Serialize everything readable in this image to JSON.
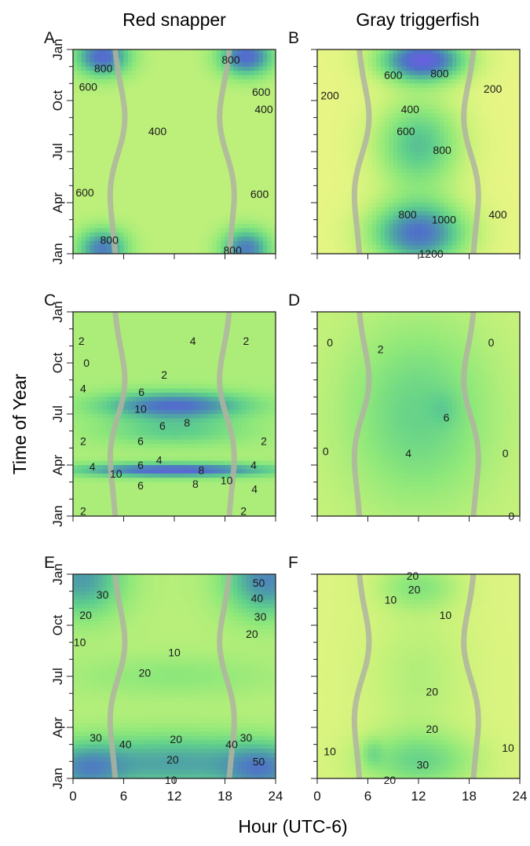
{
  "chart_data": {
    "type": "heatmap",
    "column_titles": [
      "Red snapper",
      "Gray triggerfish"
    ],
    "xlabel": "Hour (UTC-6)",
    "ylabel": "Time of Year",
    "x_ticks": [
      0,
      6,
      12,
      18,
      24
    ],
    "x_tick_labels": [
      "0",
      "6",
      "12",
      "18",
      "24"
    ],
    "xlim": [
      0,
      24
    ],
    "y_tick_labels": [
      "Jan",
      "Apr",
      "Jul",
      "Oct",
      "Jan"
    ],
    "y_tick_positions": [
      0,
      3,
      6,
      9,
      12
    ],
    "ylim": [
      0,
      12
    ],
    "colorscale": [
      "#f6f78a",
      "#c9f27a",
      "#8fe87a",
      "#5fcf8c",
      "#4d9ea8",
      "#4f72c8",
      "#6a5ee0"
    ],
    "panels": [
      {
        "letter": "A",
        "row": 0,
        "col": 0,
        "vmin": 200,
        "vmax": 1300,
        "sun_line": true,
        "blobs": [
          {
            "x": 3.5,
            "y": 11.6,
            "sx": 2.2,
            "sy": 0.8,
            "a": 750
          },
          {
            "x": 20.5,
            "y": 11.6,
            "sx": 2.2,
            "sy": 0.8,
            "a": 750
          },
          {
            "x": 3.5,
            "y": 0.3,
            "sx": 2.0,
            "sy": 0.8,
            "a": 650
          },
          {
            "x": 20.5,
            "y": 0.3,
            "sx": 2.0,
            "sy": 0.8,
            "a": 650
          }
        ],
        "base": 420,
        "labels": [
          {
            "x": 3.6,
            "y": 10.9,
            "t": "800"
          },
          {
            "x": 18.7,
            "y": 11.4,
            "t": "800"
          },
          {
            "x": 1.8,
            "y": 9.8,
            "t": "600"
          },
          {
            "x": 22.3,
            "y": 9.5,
            "t": "600"
          },
          {
            "x": 22.6,
            "y": 8.5,
            "t": "400"
          },
          {
            "x": 10.0,
            "y": 7.2,
            "t": "400"
          },
          {
            "x": 1.4,
            "y": 3.6,
            "t": "600"
          },
          {
            "x": 22.1,
            "y": 3.5,
            "t": "600"
          },
          {
            "x": 4.3,
            "y": 0.8,
            "t": "800"
          },
          {
            "x": 18.9,
            "y": 0.2,
            "t": "800"
          }
        ]
      },
      {
        "letter": "B",
        "row": 0,
        "col": 1,
        "vmin": 200,
        "vmax": 1300,
        "sun_line": true,
        "base": 260,
        "blobs": [
          {
            "x": 12.5,
            "y": 11.4,
            "sx": 3.6,
            "sy": 0.9,
            "a": 1000
          },
          {
            "x": 12.0,
            "y": 6.4,
            "sx": 3.6,
            "sy": 1.9,
            "a": 540
          },
          {
            "x": 12.0,
            "y": 1.2,
            "sx": 4.0,
            "sy": 1.3,
            "a": 850
          }
        ],
        "labels": [
          {
            "x": 9.0,
            "y": 10.5,
            "t": "600"
          },
          {
            "x": 14.5,
            "y": 10.6,
            "t": "800"
          },
          {
            "x": 1.5,
            "y": 9.3,
            "t": "200"
          },
          {
            "x": 20.8,
            "y": 9.7,
            "t": "200"
          },
          {
            "x": 11.0,
            "y": 8.5,
            "t": "400"
          },
          {
            "x": 10.5,
            "y": 7.2,
            "t": "600"
          },
          {
            "x": 14.8,
            "y": 6.1,
            "t": "800"
          },
          {
            "x": 21.4,
            "y": 2.3,
            "t": "400"
          },
          {
            "x": 10.7,
            "y": 2.3,
            "t": "800"
          },
          {
            "x": 15.0,
            "y": 2.0,
            "t": "1000"
          },
          {
            "x": 13.5,
            "y": 0.0,
            "t": "1200"
          }
        ]
      },
      {
        "letter": "C",
        "row": 1,
        "col": 0,
        "vmin": -2,
        "vmax": 12,
        "sun_line": true,
        "base": 1.5,
        "blobs": [
          {
            "x": 12.0,
            "y": 6.5,
            "sx": 6.0,
            "sy": 0.55,
            "a": 8.5
          },
          {
            "x": 12.0,
            "y": 2.7,
            "sx": 8.0,
            "sy": 0.28,
            "a": 9.5
          },
          {
            "x": 12.0,
            "y": 5.0,
            "sx": 6.0,
            "sy": 0.6,
            "a": 3.5
          }
        ],
        "labels": [
          {
            "x": 1.0,
            "y": 10.3,
            "t": "2"
          },
          {
            "x": 14.2,
            "y": 10.3,
            "t": "4"
          },
          {
            "x": 20.5,
            "y": 10.3,
            "t": "2"
          },
          {
            "x": 1.6,
            "y": 9.0,
            "t": "0"
          },
          {
            "x": 10.8,
            "y": 8.3,
            "t": "2"
          },
          {
            "x": 1.2,
            "y": 7.5,
            "t": "4"
          },
          {
            "x": 8.1,
            "y": 7.3,
            "t": "6"
          },
          {
            "x": 8.0,
            "y": 6.3,
            "t": "10"
          },
          {
            "x": 13.5,
            "y": 5.5,
            "t": "8"
          },
          {
            "x": 10.6,
            "y": 5.3,
            "t": "6"
          },
          {
            "x": 8.0,
            "y": 4.4,
            "t": "6"
          },
          {
            "x": 1.2,
            "y": 4.4,
            "t": "2"
          },
          {
            "x": 22.6,
            "y": 4.4,
            "t": "2"
          },
          {
            "x": 2.3,
            "y": 2.9,
            "t": "4"
          },
          {
            "x": 8.0,
            "y": 3.0,
            "t": "6"
          },
          {
            "x": 10.2,
            "y": 3.3,
            "t": "4"
          },
          {
            "x": 21.4,
            "y": 3.0,
            "t": "4"
          },
          {
            "x": 5.1,
            "y": 2.5,
            "t": "10"
          },
          {
            "x": 15.2,
            "y": 2.7,
            "t": "8"
          },
          {
            "x": 18.2,
            "y": 2.1,
            "t": "10"
          },
          {
            "x": 8.0,
            "y": 1.8,
            "t": "6"
          },
          {
            "x": 14.5,
            "y": 1.9,
            "t": "8"
          },
          {
            "x": 21.5,
            "y": 1.6,
            "t": "4"
          },
          {
            "x": 1.2,
            "y": 0.3,
            "t": "2"
          },
          {
            "x": 20.2,
            "y": 0.3,
            "t": "2"
          }
        ]
      },
      {
        "letter": "D",
        "row": 1,
        "col": 1,
        "vmin": -2,
        "vmax": 12,
        "sun_line": true,
        "base": 0.3,
        "blobs": [
          {
            "x": 12.0,
            "y": 6.0,
            "sx": 6.0,
            "sy": 3.8,
            "a": 4.3
          },
          {
            "x": 15.0,
            "y": 6.3,
            "sx": 1.2,
            "sy": 0.7,
            "a": 1.2
          }
        ],
        "labels": [
          {
            "x": 1.5,
            "y": 10.2,
            "t": "0"
          },
          {
            "x": 20.6,
            "y": 10.2,
            "t": "0"
          },
          {
            "x": 7.5,
            "y": 9.8,
            "t": "2"
          },
          {
            "x": 15.3,
            "y": 5.8,
            "t": "6"
          },
          {
            "x": 10.8,
            "y": 3.7,
            "t": "4"
          },
          {
            "x": 1.0,
            "y": 3.8,
            "t": "0"
          },
          {
            "x": 22.3,
            "y": 3.7,
            "t": "0"
          },
          {
            "x": 23.0,
            "y": 0.0,
            "t": "0"
          }
        ]
      },
      {
        "letter": "E",
        "row": 2,
        "col": 0,
        "vmin": 0,
        "vmax": 65,
        "sun_line": true,
        "base": 14,
        "blobs": [
          {
            "x": 1.0,
            "y": 11.8,
            "sx": 3.5,
            "sy": 1.6,
            "a": 30
          },
          {
            "x": 23.0,
            "y": 11.8,
            "sx": 3.5,
            "sy": 1.6,
            "a": 35
          },
          {
            "x": 12.0,
            "y": 0.9,
            "sx": 11.0,
            "sy": 1.2,
            "a": 28
          },
          {
            "x": 1.5,
            "y": 0.5,
            "sx": 3.0,
            "sy": 1.0,
            "a": 20
          },
          {
            "x": 22.5,
            "y": 0.5,
            "sx": 3.0,
            "sy": 1.0,
            "a": 22
          },
          {
            "x": 12.0,
            "y": 6.0,
            "sx": 9.0,
            "sy": 0.9,
            "a": 8
          }
        ],
        "labels": [
          {
            "x": 22.0,
            "y": 11.5,
            "t": "50"
          },
          {
            "x": 3.5,
            "y": 10.8,
            "t": "30"
          },
          {
            "x": 21.8,
            "y": 10.6,
            "t": "40"
          },
          {
            "x": 22.2,
            "y": 9.5,
            "t": "30"
          },
          {
            "x": 1.5,
            "y": 9.6,
            "t": "20"
          },
          {
            "x": 21.2,
            "y": 8.5,
            "t": "20"
          },
          {
            "x": 0.8,
            "y": 8.0,
            "t": "10"
          },
          {
            "x": 12.0,
            "y": 7.4,
            "t": "10"
          },
          {
            "x": 8.5,
            "y": 6.2,
            "t": "20"
          },
          {
            "x": 2.7,
            "y": 2.4,
            "t": "30"
          },
          {
            "x": 20.5,
            "y": 2.4,
            "t": "30"
          },
          {
            "x": 6.2,
            "y": 2.0,
            "t": "40"
          },
          {
            "x": 18.8,
            "y": 2.0,
            "t": "40"
          },
          {
            "x": 12.2,
            "y": 2.3,
            "t": "20"
          },
          {
            "x": 11.8,
            "y": 1.1,
            "t": "20"
          },
          {
            "x": 22.0,
            "y": 1.0,
            "t": "50"
          },
          {
            "x": 11.6,
            "y": -0.1,
            "t": "10"
          }
        ]
      },
      {
        "letter": "F",
        "row": 2,
        "col": 1,
        "vmin": 0,
        "vmax": 65,
        "sun_line": true,
        "base": 6,
        "blobs": [
          {
            "x": 12.0,
            "y": 11.3,
            "sx": 3.5,
            "sy": 1.0,
            "a": 16
          },
          {
            "x": 12.0,
            "y": 6.0,
            "sx": 4.5,
            "sy": 3.0,
            "a": 9
          },
          {
            "x": 12.0,
            "y": 1.0,
            "sx": 5.0,
            "sy": 1.2,
            "a": 22
          },
          {
            "x": 6.5,
            "y": 1.5,
            "sx": 0.9,
            "sy": 0.6,
            "a": 10
          }
        ],
        "labels": [
          {
            "x": 11.3,
            "y": 11.9,
            "t": "20"
          },
          {
            "x": 11.5,
            "y": 11.1,
            "t": "20"
          },
          {
            "x": 8.7,
            "y": 10.5,
            "t": "10"
          },
          {
            "x": 15.2,
            "y": 9.6,
            "t": "10"
          },
          {
            "x": 13.6,
            "y": 5.1,
            "t": "20"
          },
          {
            "x": 13.6,
            "y": 2.9,
            "t": "20"
          },
          {
            "x": 1.5,
            "y": 1.6,
            "t": "10"
          },
          {
            "x": 22.6,
            "y": 1.8,
            "t": "10"
          },
          {
            "x": 12.5,
            "y": 0.8,
            "t": "30"
          },
          {
            "x": 8.6,
            "y": -0.1,
            "t": "20"
          }
        ]
      }
    ]
  }
}
